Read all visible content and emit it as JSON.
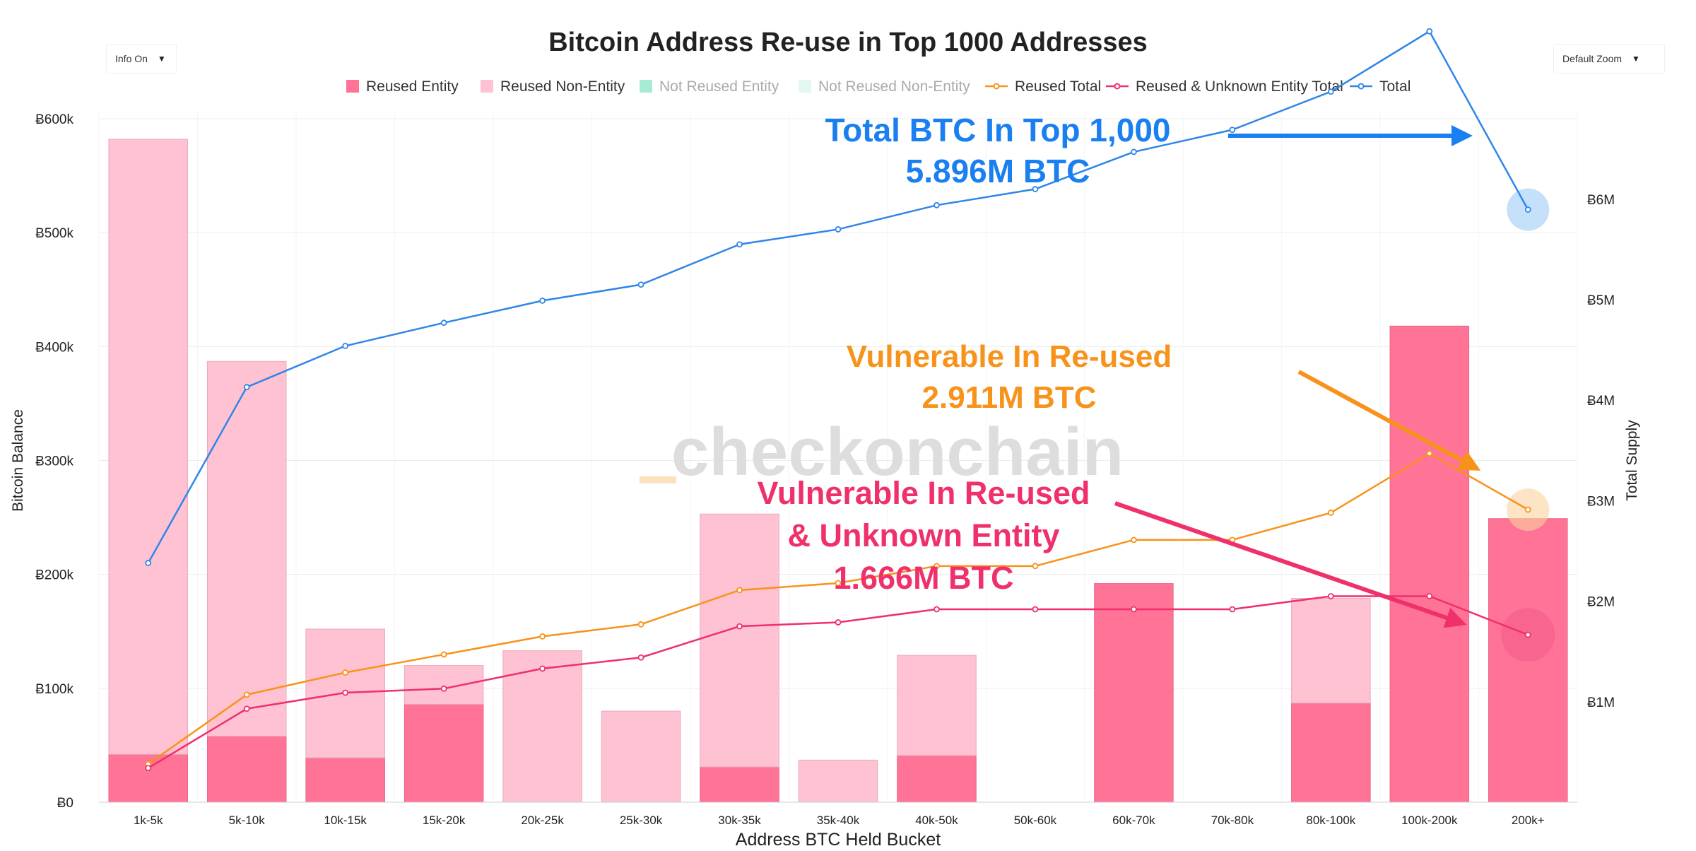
{
  "controls": {
    "info_label": "Info On",
    "zoom_label": "Default Zoom",
    "caret": "▼"
  },
  "watermark": "checkonchain",
  "colors": {
    "reused_entity": "#ff7396",
    "reused_non_entity": "#ffc2d2",
    "not_reused_entity": "#a8ebd3",
    "not_reused_non_entity": "#e3f8f0",
    "reused_total": "#f7931a",
    "reused_unknown_total": "#ef2f6e",
    "total": "#2f86e8",
    "annot_blue": "#1a7ff0",
    "annot_orange": "#f7931a",
    "annot_pink": "#f0306a",
    "watermark_gray": "#dddddd",
    "watermark_orange": "#fbe2bf"
  },
  "chart_data": {
    "type": "bar",
    "title": "Bitcoin Address Re-use in Top 1000 Addresses",
    "xlabel": "Address BTC Held Bucket",
    "ylabel": "Bitcoin Balance",
    "y2label": "Total Supply",
    "categories": [
      "1k-5k",
      "5k-10k",
      "10k-15k",
      "15k-20k",
      "20k-25k",
      "25k-30k",
      "30k-35k",
      "35k-40k",
      "40k-50k",
      "50k-60k",
      "60k-70k",
      "70k-80k",
      "80k-100k",
      "100k-200k",
      "200k+"
    ],
    "ylim": [
      0,
      600000
    ],
    "y_ticks": [
      0,
      100000,
      200000,
      300000,
      400000,
      500000,
      600000
    ],
    "y_tick_labels": [
      "Ƀ0",
      "Ƀ100k",
      "Ƀ200k",
      "Ƀ300k",
      "Ƀ400k",
      "Ƀ500k",
      "Ƀ600k"
    ],
    "y2lim": [
      0,
      6800000
    ],
    "y2_ticks": [
      1000000,
      2000000,
      3000000,
      4000000,
      5000000,
      6000000
    ],
    "y2_tick_labels": [
      "Ƀ1M",
      "Ƀ2M",
      "Ƀ3M",
      "Ƀ4M",
      "Ƀ5M",
      "Ƀ6M"
    ],
    "legend": [
      "Reused Entity",
      "Reused Non-Entity",
      "Not Reused Entity",
      "Not Reused Non-Entity",
      "Reused Total",
      "Reused & Unknown Entity Total",
      "Total"
    ],
    "bar_series": [
      {
        "name": "Reused Entity",
        "axis": "y",
        "values": [
          42000,
          58000,
          39000,
          86000,
          0,
          0,
          31000,
          0,
          41000,
          0,
          192000,
          0,
          87000,
          418000,
          249000
        ]
      },
      {
        "name": "Reused Non-Entity",
        "axis": "y",
        "values": [
          540000,
          329000,
          113000,
          34000,
          133000,
          80000,
          222000,
          37000,
          88000,
          0,
          0,
          0,
          92000,
          0,
          0
        ]
      }
    ],
    "line_series": [
      {
        "name": "Reused Total",
        "axis": "y2",
        "values": [
          380000,
          1070000,
          1290000,
          1470000,
          1650000,
          1770000,
          2110000,
          2180000,
          2350000,
          2350000,
          2610000,
          2610000,
          2880000,
          3470000,
          2911000
        ]
      },
      {
        "name": "Reused & Unknown Entity Total",
        "axis": "y2",
        "values": [
          340000,
          930000,
          1090000,
          1130000,
          1330000,
          1440000,
          1750000,
          1790000,
          1920000,
          1920000,
          1920000,
          1920000,
          2050000,
          2050000,
          1666000
        ]
      },
      {
        "name": "Total",
        "axis": "y2",
        "values": [
          2380000,
          4130000,
          4540000,
          4770000,
          4990000,
          5150000,
          5550000,
          5700000,
          5940000,
          6100000,
          6470000,
          6690000,
          7070000,
          7670000,
          5896000
        ]
      }
    ],
    "annotations": [
      {
        "lines": [
          "Total BTC In Top 1,000",
          "5.896M BTC"
        ],
        "target_series": "Total"
      },
      {
        "lines": [
          "Vulnerable In Re-used",
          "2.911M BTC"
        ],
        "target_series": "Reused Total"
      },
      {
        "lines": [
          "Vulnerable In Re-used",
          "& Unknown Entity",
          "1.666M BTC"
        ],
        "target_series": "Reused & Unknown Entity Total"
      }
    ]
  }
}
